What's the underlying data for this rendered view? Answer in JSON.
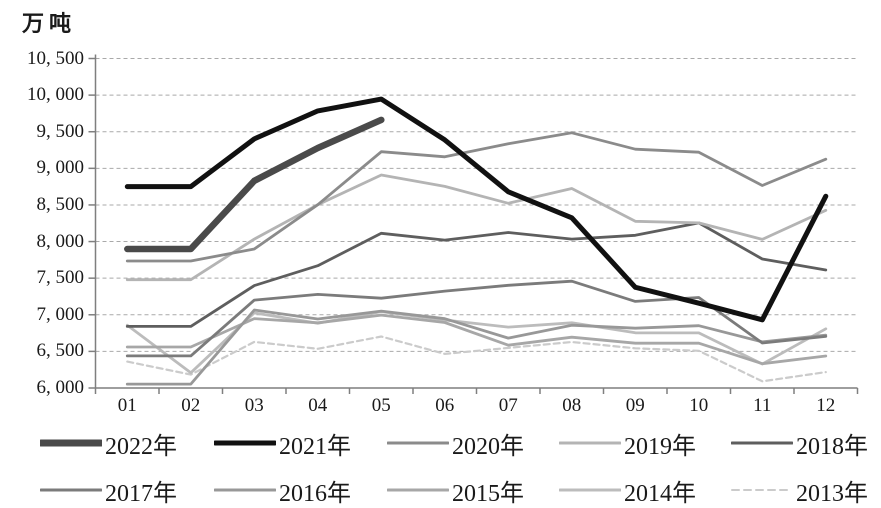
{
  "chart_data": {
    "type": "line",
    "title": "",
    "ylabel": "万吨",
    "xlabel": "",
    "x": [
      "01",
      "02",
      "03",
      "04",
      "05",
      "06",
      "07",
      "08",
      "09",
      "10",
      "11",
      "12"
    ],
    "ylim": [
      6000,
      10500
    ],
    "y_tick_step": 500,
    "y_tick_labels": [
      "10, 500",
      "10, 000",
      "9, 500",
      "9, 000",
      "8, 500",
      "8, 000",
      "7, 500",
      "7, 000",
      "6, 500",
      "6, 000"
    ],
    "grid": true,
    "grid_style": "dashed",
    "legend_position": "bottom",
    "axis_color": "#7f7f7f",
    "gridline_color": "#a9a9a9",
    "series": [
      {
        "name": "2022年",
        "color": "#4a4a4a",
        "width": 6.5,
        "dash": null,
        "swatch_width": 7,
        "values": [
          7898,
          7898,
          8830,
          9278,
          9661,
          null,
          null,
          null,
          null,
          null,
          null,
          null
        ]
      },
      {
        "name": "2021年",
        "color": "#111111",
        "width": 5,
        "dash": null,
        "swatch_width": 5,
        "values": [
          8750,
          8750,
          9402,
          9785,
          9945,
          9388,
          8679,
          8324,
          7375,
          7158,
          6931,
          8619
        ]
      },
      {
        "name": "2020年",
        "color": "#8b8b8b",
        "width": 2.8,
        "dash": null,
        "swatch_width": 3,
        "values": [
          7735,
          7735,
          7898,
          8503,
          9227,
          9158,
          9336,
          9485,
          9261,
          9220,
          8766,
          9125
        ]
      },
      {
        "name": "2019年",
        "color": "#b4b4b4",
        "width": 2.8,
        "dash": null,
        "swatch_width": 3,
        "values": [
          7479,
          7479,
          8033,
          8503,
          8909,
          8753,
          8522,
          8725,
          8277,
          8255,
          8029,
          8427
        ]
      },
      {
        "name": "2018年",
        "color": "#5e5e5e",
        "width": 2.8,
        "dash": null,
        "swatch_width": 3,
        "values": [
          6841,
          6841,
          7398,
          7670,
          8113,
          8020,
          8124,
          8033,
          8085,
          8255,
          7762,
          7612
        ]
      },
      {
        "name": "2017年",
        "color": "#7b7b7b",
        "width": 2.8,
        "dash": null,
        "swatch_width": 3,
        "values": [
          6439,
          6439,
          7200,
          7278,
          7226,
          7323,
          7402,
          7459,
          7183,
          7236,
          6615,
          6705
        ]
      },
      {
        "name": "2016年",
        "color": "#989898",
        "width": 2.8,
        "dash": null,
        "swatch_width": 3,
        "values": [
          6053,
          6053,
          7065,
          6942,
          7050,
          6947,
          6681,
          6857,
          6817,
          6851,
          6629,
          6722
        ]
      },
      {
        "name": "2015年",
        "color": "#a7a7a7",
        "width": 2.8,
        "dash": null,
        "swatch_width": 3,
        "values": [
          6560,
          6560,
          6948,
          6891,
          6995,
          6895,
          6584,
          6694,
          6612,
          6612,
          6332,
          6437
        ]
      },
      {
        "name": "2014年",
        "color": "#bcbcbc",
        "width": 2.8,
        "dash": null,
        "swatch_width": 3,
        "values": [
          6858,
          6208,
          7025,
          6884,
          7043,
          6929,
          6832,
          6891,
          6754,
          6752,
          6328,
          6809
        ]
      },
      {
        "name": "2013年",
        "color": "#cbcbcb",
        "width": 2.2,
        "dash": "6 4",
        "swatch_width": 2,
        "values": [
          6360,
          6183,
          6630,
          6535,
          6703,
          6466,
          6547,
          6628,
          6542,
          6508,
          6091,
          6217
        ]
      }
    ],
    "draw_order": [
      "2013年",
      "2014年",
      "2015年",
      "2016年",
      "2017年",
      "2018年",
      "2019年",
      "2020年",
      "2022年",
      "2021年"
    ]
  }
}
